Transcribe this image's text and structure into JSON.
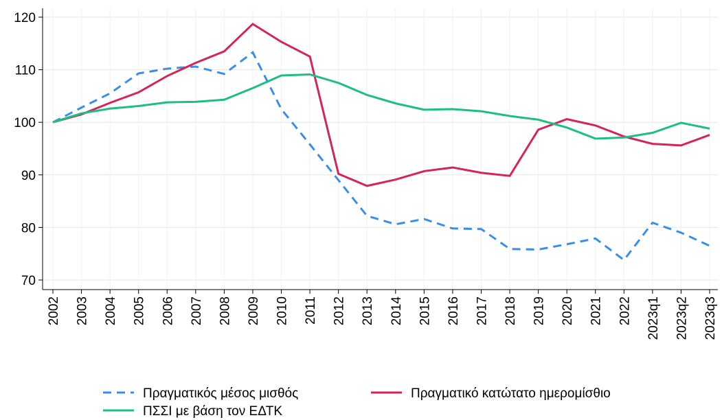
{
  "chart_data": {
    "type": "line",
    "categories": [
      "2002",
      "2003",
      "2004",
      "2005",
      "2006",
      "2007",
      "2008",
      "2009",
      "2010",
      "2011",
      "2012",
      "2013",
      "2014",
      "2015",
      "2016",
      "2017",
      "2018",
      "2019",
      "2020",
      "2021",
      "2022",
      "2023q1",
      "2023q2",
      "2023q3"
    ],
    "series": [
      {
        "name": "Πραγματικός μέσος μισθός",
        "color": "#3b8ee8",
        "dashed": true,
        "values": [
          100,
          102.8,
          105.5,
          109.3,
          110.2,
          110.6,
          109.2,
          113.3,
          102.5,
          95.8,
          89,
          82.2,
          80.6,
          81.6,
          79.8,
          79.7,
          75.9,
          75.8,
          76.8,
          77.9,
          73.8,
          80.9,
          79,
          76.5
        ]
      },
      {
        "name": "Πραγματικό κατώτατο ημερομίσθιο",
        "color": "#d42459",
        "dashed": false,
        "values": [
          100,
          101.5,
          103.7,
          105.7,
          108.8,
          111.3,
          113.5,
          118.7,
          115.3,
          112.5,
          90.2,
          87.9,
          89.1,
          90.7,
          91.4,
          90.4,
          89.8,
          98.6,
          100.6,
          99.4,
          97.3,
          95.9,
          95.6,
          97.6
        ]
      },
      {
        "name": "ΠΣΣΙ με βάση τον ΕΔΤΚ",
        "color": "#1dbf80",
        "dashed": false,
        "values": [
          100,
          101.7,
          102.6,
          103.1,
          103.8,
          103.9,
          104.3,
          106.5,
          108.9,
          109.1,
          107.5,
          105.2,
          103.6,
          102.4,
          102.5,
          102.1,
          101.2,
          100.5,
          99,
          96.9,
          97.1,
          98,
          99.9,
          98.8
        ]
      }
    ],
    "ylim": [
      70,
      120
    ],
    "yticks": [
      70,
      80,
      90,
      100,
      110,
      120
    ],
    "grid": true
  }
}
